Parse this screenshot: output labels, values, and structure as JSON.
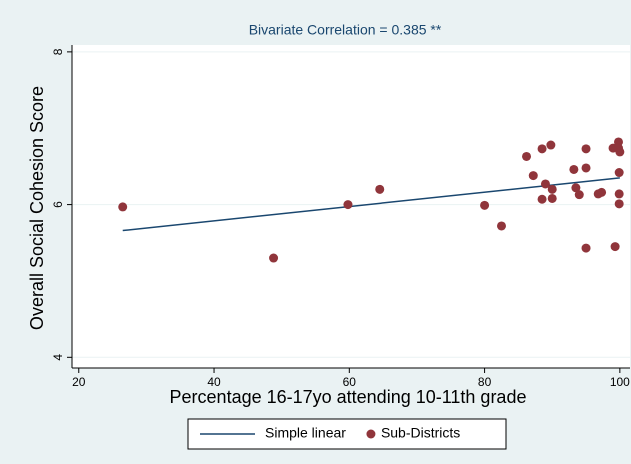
{
  "chart_data": {
    "type": "scatter",
    "title": "Bivariate Correlation = 0.385 **",
    "x_label": "Percentage 16-17yo attending 10-11th grade",
    "y_label": "Overall Social Cohesion Score",
    "xlim": [
      19,
      101.5
    ],
    "ylim": [
      3.86,
      8.09
    ],
    "xticks": [
      20,
      40,
      60,
      80,
      100
    ],
    "yticks": [
      4,
      6,
      8
    ],
    "grid": true,
    "legend": "bottom",
    "series": [
      {
        "name": "Simple linear",
        "color": "#1a476f",
        "type": "line",
        "x": [
          26.5,
          100
        ],
        "values": [
          5.66,
          6.35
        ]
      },
      {
        "name": "Sub-Districts",
        "color": "#90353b",
        "type": "scatter",
        "x": [
          26.5,
          48.8,
          59.8,
          64.5,
          80,
          82.5,
          86.2,
          87.2,
          88.5,
          88.5,
          89,
          89.8,
          90,
          90,
          93.2,
          93.5,
          94,
          95,
          95,
          95,
          96.8,
          97.3,
          99,
          99.3,
          99.8,
          99.8,
          100,
          99.9,
          99.9,
          99.9
        ],
        "values": [
          5.97,
          5.3,
          6.0,
          6.2,
          5.99,
          5.72,
          6.63,
          6.38,
          6.73,
          6.07,
          6.27,
          6.78,
          6.2,
          6.08,
          6.46,
          6.22,
          6.13,
          6.73,
          6.48,
          5.43,
          6.14,
          6.16,
          6.74,
          5.45,
          6.82,
          6.74,
          6.69,
          6.42,
          6.14,
          6.01
        ]
      }
    ]
  }
}
